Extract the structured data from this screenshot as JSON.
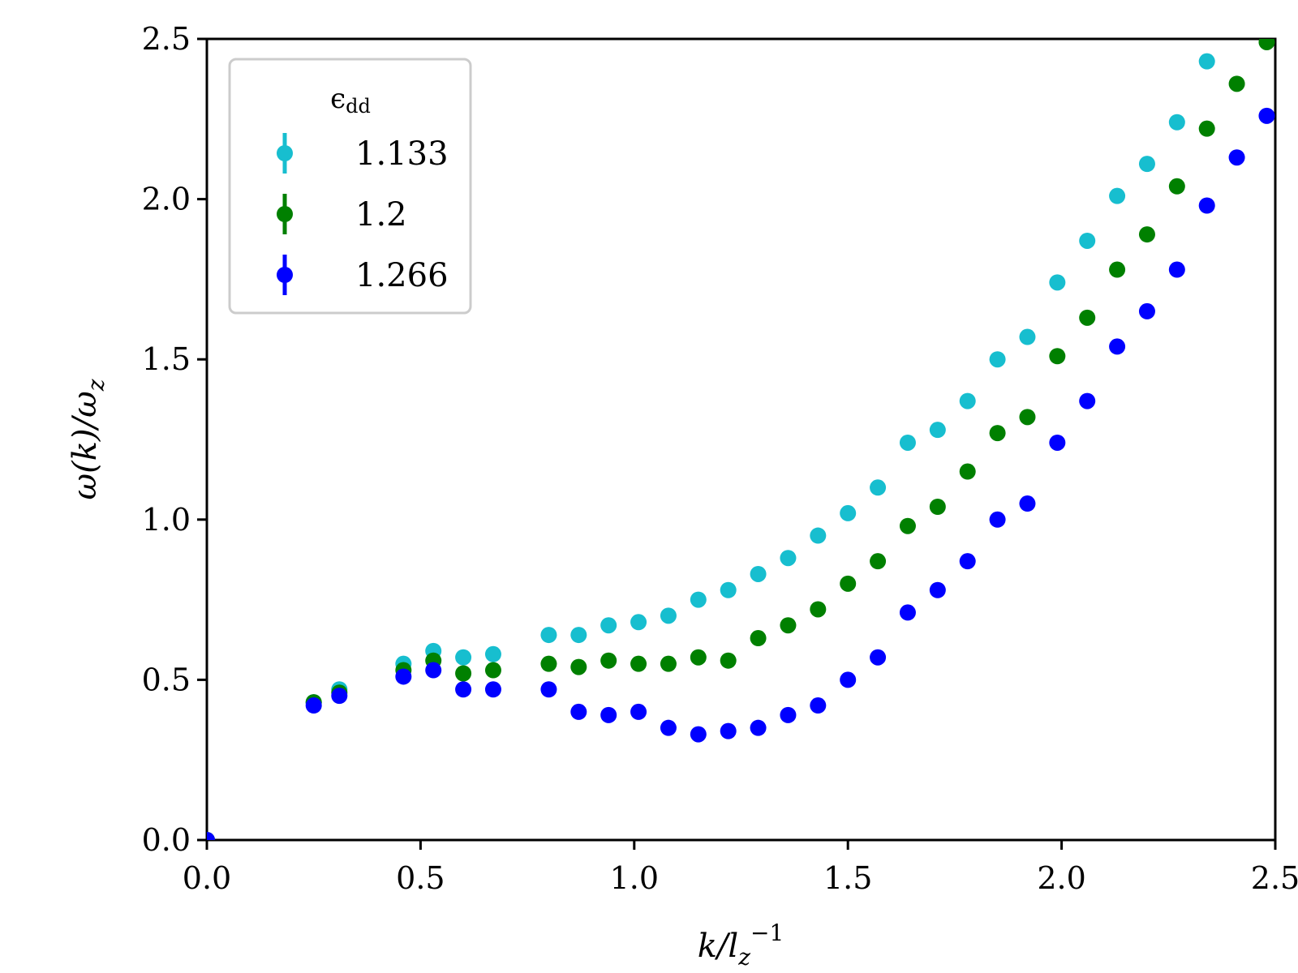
{
  "chart_data": {
    "type": "scatter",
    "title": "",
    "xlabel": "k/l_z⁻¹",
    "ylabel": "ω(k)/ω_z",
    "xlim": [
      0,
      2.5
    ],
    "ylim": [
      0,
      2.5
    ],
    "x_ticks": [
      "0.0",
      "0.5",
      "1.0",
      "1.5",
      "2.0",
      "2.5"
    ],
    "y_ticks": [
      "0.0",
      "0.5",
      "1.0",
      "1.5",
      "2.0",
      "2.5"
    ],
    "grid": false,
    "legend": {
      "title": "ϵdd",
      "position": "top-left"
    },
    "series": [
      {
        "name": "1.133",
        "color": "#17becf",
        "x": [
          0.0,
          0.25,
          0.31,
          0.46,
          0.53,
          0.6,
          0.67,
          0.8,
          0.87,
          0.94,
          1.01,
          1.08,
          1.15,
          1.22,
          1.29,
          1.36,
          1.43,
          1.5,
          1.57,
          1.64,
          1.71,
          1.78,
          1.85,
          1.92,
          1.99,
          2.06,
          2.13,
          2.2,
          2.27,
          2.34
        ],
        "y": [
          0.0,
          0.43,
          0.47,
          0.55,
          0.59,
          0.57,
          0.58,
          0.64,
          0.64,
          0.67,
          0.68,
          0.7,
          0.75,
          0.78,
          0.83,
          0.88,
          0.95,
          1.02,
          1.1,
          1.24,
          1.28,
          1.37,
          1.5,
          1.57,
          1.74,
          1.87,
          2.01,
          2.11,
          2.24,
          2.43
        ]
      },
      {
        "name": "1.2",
        "color": "#008000",
        "x": [
          0.0,
          0.25,
          0.31,
          0.46,
          0.53,
          0.6,
          0.67,
          0.8,
          0.87,
          0.94,
          1.01,
          1.08,
          1.15,
          1.22,
          1.29,
          1.36,
          1.43,
          1.5,
          1.57,
          1.64,
          1.71,
          1.78,
          1.85,
          1.92,
          1.99,
          2.06,
          2.13,
          2.2,
          2.27,
          2.34,
          2.41,
          2.48
        ],
        "y": [
          0.0,
          0.43,
          0.46,
          0.53,
          0.56,
          0.52,
          0.53,
          0.55,
          0.54,
          0.56,
          0.55,
          0.55,
          0.57,
          0.56,
          0.63,
          0.67,
          0.72,
          0.8,
          0.87,
          0.98,
          1.04,
          1.15,
          1.27,
          1.32,
          1.51,
          1.63,
          1.78,
          1.89,
          2.04,
          2.22,
          2.36,
          2.49
        ]
      },
      {
        "name": "1.266",
        "color": "#0000ff",
        "x": [
          0.0,
          0.25,
          0.31,
          0.46,
          0.53,
          0.6,
          0.67,
          0.8,
          0.87,
          0.94,
          1.01,
          1.08,
          1.15,
          1.22,
          1.29,
          1.36,
          1.43,
          1.5,
          1.57,
          1.64,
          1.71,
          1.78,
          1.85,
          1.92,
          1.99,
          2.06,
          2.13,
          2.2,
          2.27,
          2.34,
          2.41,
          2.48
        ],
        "y": [
          0.0,
          0.42,
          0.45,
          0.51,
          0.53,
          0.47,
          0.47,
          0.47,
          0.4,
          0.39,
          0.4,
          0.35,
          0.33,
          0.34,
          0.35,
          0.39,
          0.42,
          0.5,
          0.57,
          0.71,
          0.78,
          0.87,
          1.0,
          1.05,
          1.24,
          1.37,
          1.54,
          1.65,
          1.78,
          1.98,
          2.13,
          2.26
        ]
      }
    ]
  }
}
